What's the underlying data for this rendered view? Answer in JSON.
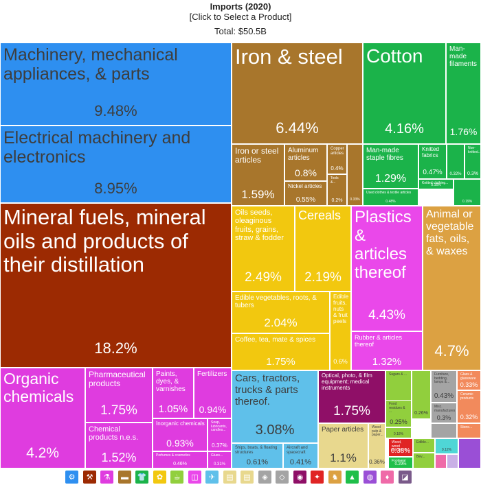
{
  "header": {
    "title": "Imports (2020)",
    "subtitle": "[Click to Select a Product]",
    "total": "Total: $50.5B"
  },
  "chart_data": {
    "type": "treemap",
    "title": "Imports (2020)",
    "total": "$50.5B",
    "items": [
      {
        "id": "machinery",
        "label": "Machinery, mechanical appliances, & parts",
        "value": 9.48,
        "pct": "9.48%",
        "color": "#2e8ff0",
        "text": "light",
        "ls": 25,
        "ps": 22
      },
      {
        "id": "electrical",
        "label": "Electrical machinery and electronics",
        "value": 8.95,
        "pct": "8.95%",
        "color": "#2e8ff0",
        "text": "light",
        "ls": 25,
        "ps": 22
      },
      {
        "id": "mineral-fuels",
        "label": "Mineral fuels, mineral oils and products of their distillation",
        "value": 18.2,
        "pct": "18.2%",
        "color": "#9c2a02",
        "text": "dark",
        "ls": 31,
        "ps": 22
      },
      {
        "id": "iron-steel",
        "label": "Iron & steel",
        "value": 6.44,
        "pct": "6.44%",
        "color": "#a8762c",
        "text": "dark",
        "ls": 31,
        "ps": 22
      },
      {
        "id": "iron-steel-articles",
        "label": "Iron or steel articles",
        "value": 1.59,
        "pct": "1.59%",
        "color": "#a8762c",
        "text": "dark",
        "ls": 12,
        "ps": 17
      },
      {
        "id": "aluminum",
        "label": "Aluminum articles",
        "value": 0.8,
        "pct": "0.8%",
        "color": "#a8762c",
        "text": "dark",
        "ls": 10,
        "ps": 14
      },
      {
        "id": "copper",
        "label": "Copper articles",
        "value": 0.4,
        "pct": "0.4%",
        "color": "#a8762c",
        "text": "dark",
        "ls": 6,
        "ps": 8
      },
      {
        "id": "nickel",
        "label": "Nickel articles",
        "value": 0.55,
        "pct": "0.55%",
        "color": "#a8762c",
        "text": "dark",
        "ls": 8,
        "ps": 10
      },
      {
        "id": "tools",
        "label": "Tools &...",
        "value": 0.2,
        "pct": "0.2%",
        "color": "#a8762c",
        "text": "dark",
        "ls": 5,
        "ps": 7
      },
      {
        "id": "metals-other",
        "label": "",
        "value": 0.33,
        "pct": "0.33%",
        "color": "#a8762c",
        "text": "dark",
        "ls": 5,
        "ps": 5
      },
      {
        "id": "cotton",
        "label": "Cotton",
        "value": 4.16,
        "pct": "4.16%",
        "color": "#1bb34a",
        "text": "dark",
        "ls": 28,
        "ps": 20
      },
      {
        "id": "manmade-filaments",
        "label": "Man-made filaments",
        "value": 1.76,
        "pct": "1.76%",
        "color": "#1bb34a",
        "text": "dark",
        "ls": 10,
        "ps": 14
      },
      {
        "id": "manmade-staple",
        "label": "Man-made staple fibres",
        "value": 1.29,
        "pct": "1.29%",
        "color": "#1bb34a",
        "text": "dark",
        "ls": 10,
        "ps": 16
      },
      {
        "id": "knitted",
        "label": "Knitted fabrics",
        "value": 0.47,
        "pct": "0.47%",
        "color": "#1bb34a",
        "text": "dark",
        "ls": 8,
        "ps": 10
      },
      {
        "id": "textile-small-1",
        "label": "",
        "value": 0.32,
        "pct": "0.32%",
        "color": "#1bb34a",
        "text": "dark",
        "ls": 5,
        "ps": 6
      },
      {
        "id": "non-knitted",
        "label": "Non-knitted...",
        "value": 0.3,
        "pct": "0.3%",
        "color": "#1bb34a",
        "text": "dark",
        "ls": 5,
        "ps": 7
      },
      {
        "id": "knitted-clothing",
        "label": "Knitted clothing...",
        "value": 0.16,
        "pct": "0.16%",
        "color": "#1bb34a",
        "text": "dark",
        "ls": 5,
        "ps": 5
      },
      {
        "id": "used-clothes",
        "label": "Used clothes & textile articles",
        "value": 0.48,
        "pct": "0.48%",
        "color": "#1bb34a",
        "text": "dark",
        "ls": 5,
        "ps": 5
      },
      {
        "id": "textile-small-2",
        "label": "",
        "value": 0.19,
        "pct": "0.19%",
        "color": "#1bb34a",
        "text": "dark",
        "ls": 5,
        "ps": 5
      },
      {
        "id": "oil-seeds",
        "label": "Oils seeds, oleaginous fruits, grains, straw & fodder",
        "value": 2.49,
        "pct": "2.49%",
        "color": "#f2c80f",
        "text": "dark",
        "ls": 11,
        "ps": 19
      },
      {
        "id": "cereals",
        "label": "Cereals",
        "value": 2.19,
        "pct": "2.19%",
        "color": "#f2c80f",
        "text": "dark",
        "ls": 18,
        "ps": 19
      },
      {
        "id": "edible-vegetables",
        "label": "Edible vegetables, roots, & tubers",
        "value": 2.04,
        "pct": "2.04%",
        "color": "#f2c80f",
        "text": "dark",
        "ls": 10,
        "ps": 17
      },
      {
        "id": "edible-fruits",
        "label": "Edible fruits, nuts & fruit peels",
        "value": 0.6,
        "pct": "0.6%",
        "color": "#f2c80f",
        "text": "dark",
        "ls": 8,
        "ps": 9
      },
      {
        "id": "coffee-tea",
        "label": "Coffee, tea, mate & spices",
        "value": 1.75,
        "pct": "1.75%",
        "color": "#f2c80f",
        "text": "dark",
        "ls": 10,
        "ps": 15
      },
      {
        "id": "plastics",
        "label": "Plastics & articles thereof",
        "value": 4.43,
        "pct": "4.43%",
        "color": "#ea48ea",
        "text": "dark",
        "ls": 24,
        "ps": 19
      },
      {
        "id": "rubber",
        "label": "Rubber & articles thereof",
        "value": 1.32,
        "pct": "1.32%",
        "color": "#ea48ea",
        "text": "dark",
        "ls": 9,
        "ps": 15
      },
      {
        "id": "animal-fats",
        "label": "Animal or vegetable fats, oils, & waxes",
        "value": 4.7,
        "pct": "4.7%",
        "color": "#dca142",
        "text": "dark",
        "ls": 16,
        "ps": 22
      },
      {
        "id": "organic-chemicals",
        "label": "Organic chemicals",
        "value": 4.2,
        "pct": "4.2%",
        "color": "#df3cdf",
        "text": "dark",
        "ls": 23,
        "ps": 21
      },
      {
        "id": "pharmaceutical",
        "label": "Pharmaceutical products",
        "value": 1.75,
        "pct": "1.75%",
        "color": "#df3cdf",
        "text": "dark",
        "ls": 12,
        "ps": 19
      },
      {
        "id": "paints",
        "label": "Paints, dyes, & varnishes",
        "value": 1.05,
        "pct": "1.05%",
        "color": "#df3cdf",
        "text": "dark",
        "ls": 10,
        "ps": 15
      },
      {
        "id": "fertilizers",
        "label": "Fertilizers",
        "value": 0.94,
        "pct": "0.94%",
        "color": "#df3cdf",
        "text": "dark",
        "ls": 10,
        "ps": 14
      },
      {
        "id": "chemical-nes",
        "label": "Chemical products n.e.s.",
        "value": 1.52,
        "pct": "1.52%",
        "color": "#df3cdf",
        "text": "dark",
        "ls": 11,
        "ps": 18
      },
      {
        "id": "inorganic",
        "label": "Inorganic chemicals",
        "value": 0.93,
        "pct": "0.93%",
        "color": "#df3cdf",
        "text": "dark",
        "ls": 8,
        "ps": 14
      },
      {
        "id": "soaps",
        "label": "Soap, lubricants, candles...",
        "value": 0.37,
        "pct": "0.37%",
        "color": "#df3cdf",
        "text": "dark",
        "ls": 5,
        "ps": 8
      },
      {
        "id": "perfumes",
        "label": "Perfumes & cosmetics",
        "value": 0.46,
        "pct": "0.46%",
        "color": "#df3cdf",
        "text": "dark",
        "ls": 5,
        "ps": 7
      },
      {
        "id": "glues",
        "label": "Glues...",
        "value": 0.31,
        "pct": "0.31%",
        "color": "#df3cdf",
        "text": "dark",
        "ls": 5,
        "ps": 6
      },
      {
        "id": "cars",
        "label": "Cars, tractors, trucks & parts thereof.",
        "value": 3.08,
        "pct": "3.08%",
        "color": "#5fc0ea",
        "text": "light",
        "ls": 15,
        "ps": 20
      },
      {
        "id": "ships",
        "label": "Ships, boats, & floating structures",
        "value": 0.61,
        "pct": "0.61%",
        "color": "#5fc0ea",
        "text": "light",
        "ls": 6,
        "ps": 11
      },
      {
        "id": "aircraft",
        "label": "Aircraft and spacecraft",
        "value": 0.41,
        "pct": "0.41%",
        "color": "#5fc0ea",
        "text": "light",
        "ls": 6,
        "ps": 11
      },
      {
        "id": "optical",
        "label": "Optical, photo, & film equipment; medical instruments",
        "value": 1.75,
        "pct": "1.75%",
        "color": "#8f0f67",
        "text": "dark",
        "ls": 8,
        "ps": 19
      },
      {
        "id": "paper",
        "label": "Paper articles",
        "value": 1.1,
        "pct": "1.1%",
        "color": "#e8d88e",
        "text": "light",
        "ls": 10,
        "ps": 17
      },
      {
        "id": "wood-pulp",
        "label": "Wood pulp & paper...",
        "value": 0.36,
        "pct": "0.36%",
        "color": "#e8d88e",
        "text": "light",
        "ls": 5,
        "ps": 8
      },
      {
        "id": "sugars",
        "label": "Sugars & ...",
        "value": 0.38,
        "pct": "0.38%",
        "color": "#91cf3d",
        "text": "light",
        "ls": 5,
        "ps": 11
      },
      {
        "id": "food-residues",
        "label": "Food residues & ...",
        "value": 0.25,
        "pct": "0.25%",
        "color": "#91cf3d",
        "text": "light",
        "ls": 5,
        "ps": 9
      },
      {
        "id": "misc-food-1",
        "label": "",
        "value": 0.26,
        "pct": "0.26%",
        "color": "#91cf3d",
        "text": "light",
        "ls": 5,
        "ps": 7
      },
      {
        "id": "misc-food-2",
        "label": "",
        "value": 0.18,
        "pct": "0.18%",
        "color": "#91cf3d",
        "text": "light",
        "ls": 5,
        "ps": 5
      },
      {
        "id": "furniture",
        "label": "Furniture, bedding, lamps &...",
        "value": 0.43,
        "pct": "0.43%",
        "color": "#a4a4a4",
        "text": "light",
        "ls": 5,
        "ps": 10
      },
      {
        "id": "misc-manufactures",
        "label": "Misc. manufactures",
        "value": 0.3,
        "pct": "0.3%",
        "color": "#a4a4a4",
        "text": "light",
        "ls": 5,
        "ps": 9
      },
      {
        "id": "misc-grey",
        "label": "",
        "value": 0.1,
        "pct": "",
        "color": "#a4a4a4",
        "text": "light",
        "ls": 5,
        "ps": 5
      },
      {
        "id": "glass",
        "label": "Glass & glassware",
        "value": 0.33,
        "pct": "0.33%",
        "color": "#f28a5c",
        "text": "dark",
        "ls": 5,
        "ps": 9
      },
      {
        "id": "ceramic",
        "label": "Ceramic products",
        "value": 0.32,
        "pct": "0.32%",
        "color": "#f28a5c",
        "text": "dark",
        "ls": 5,
        "ps": 9
      },
      {
        "id": "stone",
        "label": "Stone...",
        "value": 0.15,
        "pct": "",
        "color": "#f28a5c",
        "text": "dark",
        "ls": 5,
        "ps": 5
      },
      {
        "id": "wood-articles",
        "label": "Wood, wood articles, &...",
        "value": 0.38,
        "pct": "0.38%",
        "color": "#e02424",
        "text": "dark",
        "ls": 5,
        "ps": 10
      },
      {
        "id": "footwear",
        "label": "Footwear",
        "value": 0.29,
        "pct": "0.29%",
        "color": "#1fbf4a",
        "text": "dark",
        "ls": 5,
        "ps": 6
      },
      {
        "id": "edible-prep",
        "label": "Edible...",
        "value": 0.17,
        "pct": "",
        "color": "#91cf3d",
        "text": "light",
        "ls": 5,
        "ps": 5
      },
      {
        "id": "beverages",
        "label": "Bev...",
        "value": 0.12,
        "pct": "",
        "color": "#91cf3d",
        "text": "light",
        "ls": 5,
        "ps": 5
      },
      {
        "id": "misc-cyan",
        "label": "",
        "value": 0.12,
        "pct": "0.12%",
        "color": "#4fd6d6",
        "text": "light",
        "ls": 5,
        "ps": 5
      },
      {
        "id": "misc-purple",
        "label": "",
        "value": 0.12,
        "pct": "",
        "color": "#9a4fd6",
        "text": "dark",
        "ls": 5,
        "ps": 5
      },
      {
        "id": "misc-pink",
        "label": "",
        "value": 0.1,
        "pct": "",
        "color": "#ef6aa8",
        "text": "dark",
        "ls": 5,
        "ps": 5
      },
      {
        "id": "misc-lavender",
        "label": "",
        "value": 0.1,
        "pct": "",
        "color": "#c9b0e6",
        "text": "light",
        "ls": 5,
        "ps": 5
      }
    ],
    "legend": [
      {
        "name": "machinery",
        "color": "#2e8ff0",
        "glyph": "⚙"
      },
      {
        "name": "minerals",
        "color": "#9c2a02",
        "glyph": "⚒"
      },
      {
        "name": "chemicals",
        "color": "#df3cdf",
        "glyph": "⚗"
      },
      {
        "name": "metals",
        "color": "#a8762c",
        "glyph": "▬"
      },
      {
        "name": "textiles",
        "color": "#1bb34a",
        "glyph": "👕"
      },
      {
        "name": "vegetables",
        "color": "#f2c80f",
        "glyph": "✿"
      },
      {
        "name": "foodstuffs",
        "color": "#91cf3d",
        "glyph": "☕"
      },
      {
        "name": "plastics",
        "color": "#ea48ea",
        "glyph": "◫"
      },
      {
        "name": "transport",
        "color": "#5fc0ea",
        "glyph": "✈"
      },
      {
        "name": "wood",
        "color": "#e8d88e",
        "glyph": "▤"
      },
      {
        "name": "paper",
        "color": "#e8d88e",
        "glyph": "▤"
      },
      {
        "name": "stone",
        "color": "#a4a4a4",
        "glyph": "◈"
      },
      {
        "name": "misc",
        "color": "#a4a4a4",
        "glyph": "◇"
      },
      {
        "name": "instruments",
        "color": "#8f0f67",
        "glyph": "◉"
      },
      {
        "name": "weapons",
        "color": "#e02424",
        "glyph": "✦"
      },
      {
        "name": "animal",
        "color": "#dca142",
        "glyph": "♞"
      },
      {
        "name": "footwear",
        "color": "#1fbf4a",
        "glyph": "▲"
      },
      {
        "name": "art",
        "color": "#9a4fd6",
        "glyph": "◍"
      },
      {
        "name": "precious",
        "color": "#ef6aa8",
        "glyph": "♦"
      },
      {
        "name": "other",
        "color": "#7a5a8a",
        "glyph": "◪"
      }
    ]
  }
}
